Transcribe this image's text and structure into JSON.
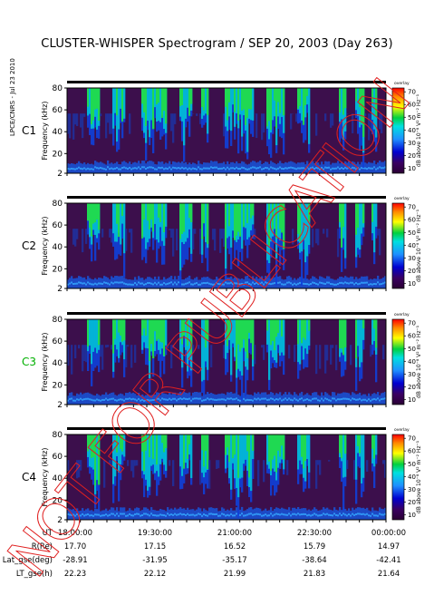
{
  "header": {
    "title": "CLUSTER-WHISPER Spectrogram / SEP 20, 2003 (Day 263)",
    "side_text": "LPCE/CNRS - Jul 23 2010"
  },
  "chart_data": [
    {
      "type": "heatmap",
      "panel": "C1",
      "ylabel": "Frequency (kHz)",
      "yticks": [
        2,
        20,
        40,
        60,
        80
      ],
      "ylim": [
        2,
        80
      ],
      "colorbar_label": "dB above 10⁻⁸ V² m⁻² Hz⁻¹",
      "colorbar_ticks": [
        10,
        20,
        30,
        40,
        50,
        60,
        70
      ],
      "colorbar_header": "overlay"
    },
    {
      "type": "heatmap",
      "panel": "C2",
      "ylabel": "Frequency (kHz)",
      "yticks": [
        2,
        20,
        40,
        60,
        80
      ],
      "ylim": [
        2,
        80
      ],
      "colorbar_label": "dB above 10⁻⁸ V² m⁻² Hz⁻¹",
      "colorbar_ticks": [
        10,
        20,
        30,
        40,
        50,
        60,
        70
      ],
      "colorbar_header": "overlay"
    },
    {
      "type": "heatmap",
      "panel": "C3",
      "ylabel": "Frequency (kHz)",
      "yticks": [
        2,
        20,
        40,
        60,
        80
      ],
      "ylim": [
        2,
        80
      ],
      "colorbar_label": "dB above 10⁻⁸ V² m⁻² Hz⁻¹",
      "colorbar_ticks": [
        10,
        20,
        30,
        40,
        50,
        60,
        70
      ],
      "colorbar_header": "overlay"
    },
    {
      "type": "heatmap",
      "panel": "C4",
      "ylabel": "Frequency (kHz)",
      "yticks": [
        2,
        20,
        40,
        60,
        80
      ],
      "ylim": [
        2,
        80
      ],
      "colorbar_label": "dB above 10⁻⁸ V² m⁻² Hz⁻¹",
      "colorbar_ticks": [
        10,
        20,
        30,
        40,
        50,
        60,
        70
      ],
      "colorbar_header": "overlay"
    }
  ],
  "panel_label_colors": {
    "C1": "#000000",
    "C2": "#000000",
    "C3": "#00b000",
    "C4": "#000000"
  },
  "ephemeris": {
    "rows": [
      {
        "label": "UT",
        "values": [
          "18:00:00",
          "19:30:00",
          "21:00:00",
          "22:30:00",
          "00:00:00"
        ]
      },
      {
        "label": "R(Re)",
        "values": [
          "17.70",
          "17.15",
          "16.52",
          "15.79",
          "14.97"
        ]
      },
      {
        "label": "Lat_gse(deg)",
        "values": [
          "-28.91",
          "-31.95",
          "-35.17",
          "-38.64",
          "-42.41"
        ]
      },
      {
        "label": "LT_gse(h)",
        "values": [
          "22.23",
          "22.12",
          "21.99",
          "21.83",
          "21.64"
        ]
      }
    ]
  },
  "watermark": {
    "text": "NOT FOR PUBLICATION",
    "color": "#e02020"
  }
}
